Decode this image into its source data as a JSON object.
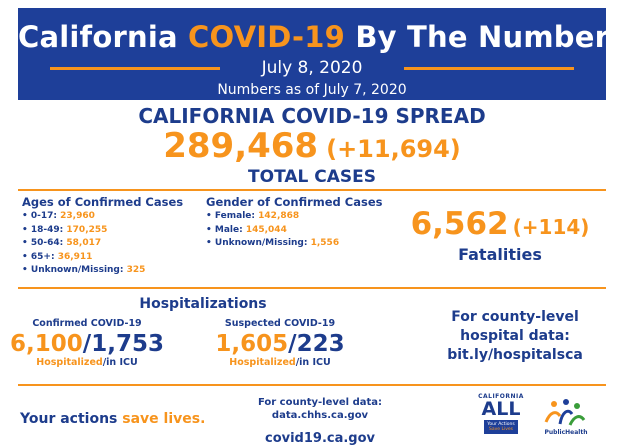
{
  "header": {
    "title_part1": "California",
    "title_highlight": "COVID-19",
    "title_part2": "By The Numbers",
    "date": "July 8, 2020",
    "as_of": "Numbers as of July 7, 2020"
  },
  "spread": {
    "title": "CALIFORNIA COVID-19 SPREAD",
    "total": "289,468",
    "total_change": "(+11,694)",
    "total_label": "TOTAL CASES"
  },
  "ages": {
    "title": "Ages of Confirmed Cases",
    "items": [
      {
        "label": "• 0-17: ",
        "value": "23,960"
      },
      {
        "label": "• 18-49: ",
        "value": "170,255"
      },
      {
        "label": "• 50-64: ",
        "value": "58,017"
      },
      {
        "label": "• 65+: ",
        "value": "36,911"
      },
      {
        "label": "• Unknown/Missing: ",
        "value": "325"
      }
    ]
  },
  "gender": {
    "title": "Gender of Confirmed Cases",
    "items": [
      {
        "label": "• Female: ",
        "value": "142,868"
      },
      {
        "label": "• Male: ",
        "value": "145,044"
      },
      {
        "label": "• Unknown/Missing: ",
        "value": "1,556"
      }
    ]
  },
  "fatalities": {
    "value": "6,562",
    "change": "(+114)",
    "label": "Fatalities"
  },
  "hospitalizations": {
    "title": "Hospitalizations",
    "confirmed": {
      "label": "Confirmed COVID-19",
      "hospitalized": "6,100",
      "icu": "1,753",
      "sub_hosp": "Hospitalized",
      "sub_icu": "/in ICU"
    },
    "suspected": {
      "label": "Suspected COVID-19",
      "hospitalized": "1,605",
      "icu": "223",
      "sub_hosp": "Hospitalized",
      "sub_icu": "/in ICU"
    }
  },
  "county_hospital": {
    "line1": "For county-level",
    "line2": "hospital data:",
    "line3": "bit.ly/hospitalsca"
  },
  "footer": {
    "actions_part1": "Your actions ",
    "actions_highlight": "save lives.",
    "county_data_label": "For county-level data:",
    "county_data_url": "data.chhs.ca.gov",
    "site": "covid19.ca.gov",
    "logo_ca_top": "CALIFORNIA",
    "logo_ca_all": "ALL",
    "logo_ca_line1": "Your Actions",
    "logo_ca_line2": "Save Lives",
    "logo_ph_text": "PublicHealth"
  },
  "colors": {
    "brand_blue": "#1e3f99",
    "accent_orange": "#f7941d"
  }
}
